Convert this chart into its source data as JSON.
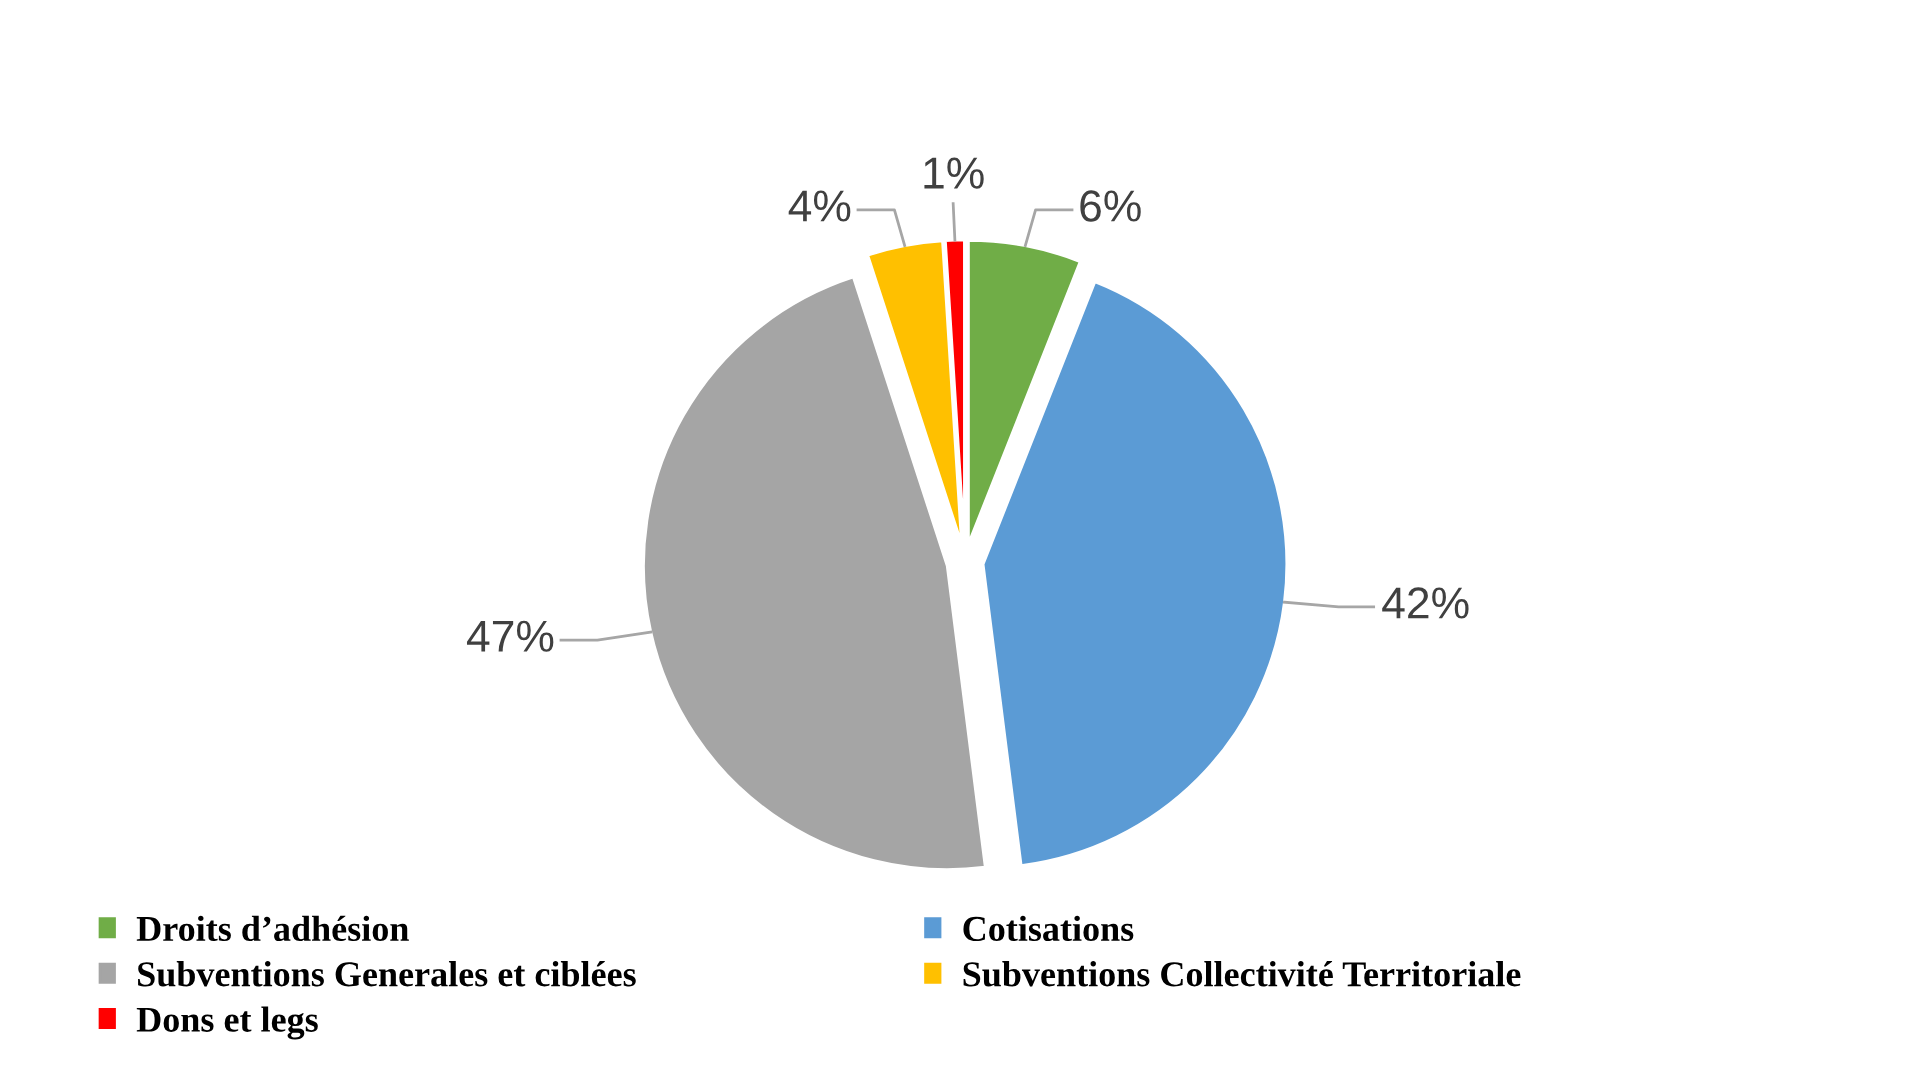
{
  "chart_data": {
    "type": "pie",
    "categories": [
      "Droits d’adhésion",
      "Cotisations",
      "Subventions Generales et ciblées",
      "Subventions Collectivité Territoriale",
      "Dons et legs"
    ],
    "values": [
      6,
      42,
      47,
      4,
      1
    ],
    "colors": [
      "#70ad47",
      "#5b9bd5",
      "#a5a5a5",
      "#ffc000",
      "#ff0000"
    ],
    "value_labels": [
      "6%",
      "42%",
      "47%",
      "4%",
      "1%"
    ],
    "legend": "bottom"
  }
}
